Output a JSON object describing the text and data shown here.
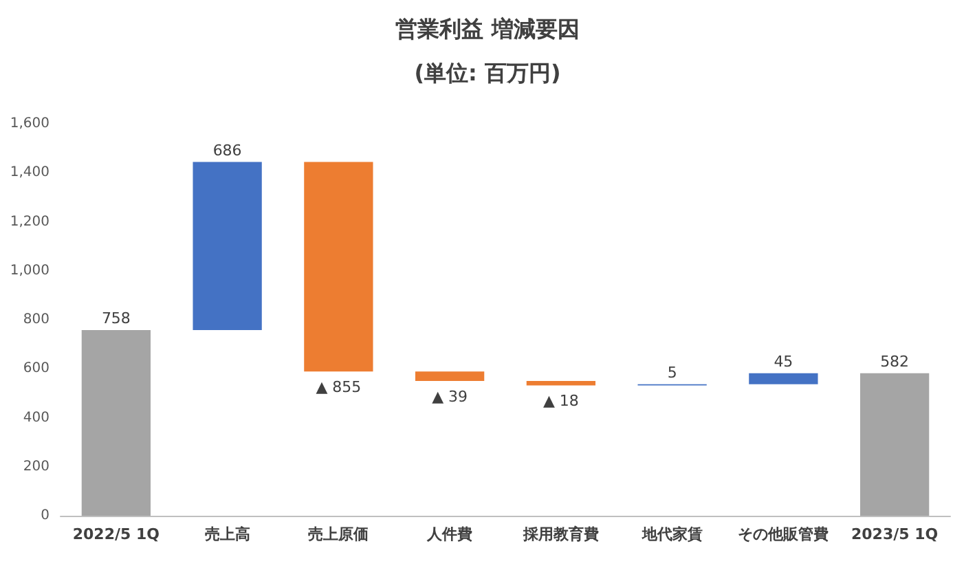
{
  "chart_data": {
    "type": "bar",
    "title": "営業利益 増減要因",
    "subtitle": "(単位: 百万円)",
    "categories": [
      "2022/5 1Q",
      "売上高",
      "売上原価",
      "人件費",
      "採用教育費",
      "地代家賃",
      "その他販管費",
      "2023/5 1Q"
    ],
    "values": [
      758,
      686,
      855,
      39,
      18,
      5,
      45,
      582
    ],
    "base": [
      0,
      758,
      589,
      550,
      532,
      532,
      537,
      0
    ],
    "colors": [
      "#a5a5a5",
      "#4472c4",
      "#ed7d31",
      "#ed7d31",
      "#ed7d31",
      "#4472c4",
      "#4472c4",
      "#a5a5a5"
    ],
    "value_labels": [
      "758",
      "686",
      "▲ 855",
      "▲ 39",
      "▲ 18",
      "5",
      "45",
      "582"
    ],
    "ylim": [
      0,
      1600
    ],
    "yticks": [
      0,
      200,
      400,
      600,
      800,
      {
        "value": 1000,
        "label": "1,000"
      },
      {
        "value": 1200,
        "label": "1,200"
      },
      {
        "value": 1400,
        "label": "1,400"
      },
      {
        "value": 1600,
        "label": "1,600"
      }
    ],
    "grid": false
  }
}
